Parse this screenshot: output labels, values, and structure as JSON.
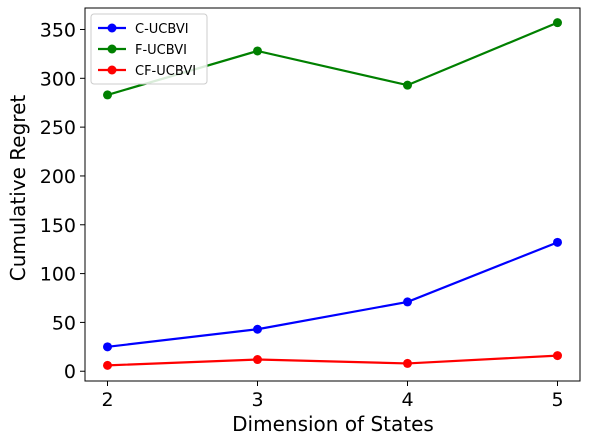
{
  "chart_data": {
    "type": "line",
    "title": "",
    "xlabel": "Dimension of States",
    "ylabel": "Cumulative Regret",
    "x": [
      2,
      3,
      4,
      5
    ],
    "xticks": [
      "2",
      "3",
      "4",
      "5"
    ],
    "yticks": [
      "0",
      "50",
      "100",
      "150",
      "200",
      "250",
      "300",
      "350"
    ],
    "xlim": [
      1.85,
      5.15
    ],
    "ylim": [
      -10,
      372
    ],
    "grid": false,
    "legend_position": "top-left",
    "series": [
      {
        "name": "C-UCBVI",
        "color": "#0000ff",
        "values": [
          25,
          43,
          71,
          132
        ]
      },
      {
        "name": "F-UCBVI",
        "color": "#008000",
        "values": [
          283,
          328,
          293,
          357
        ]
      },
      {
        "name": "CF-UCBVI",
        "color": "#ff0000",
        "values": [
          6,
          12,
          8,
          16
        ]
      }
    ]
  }
}
